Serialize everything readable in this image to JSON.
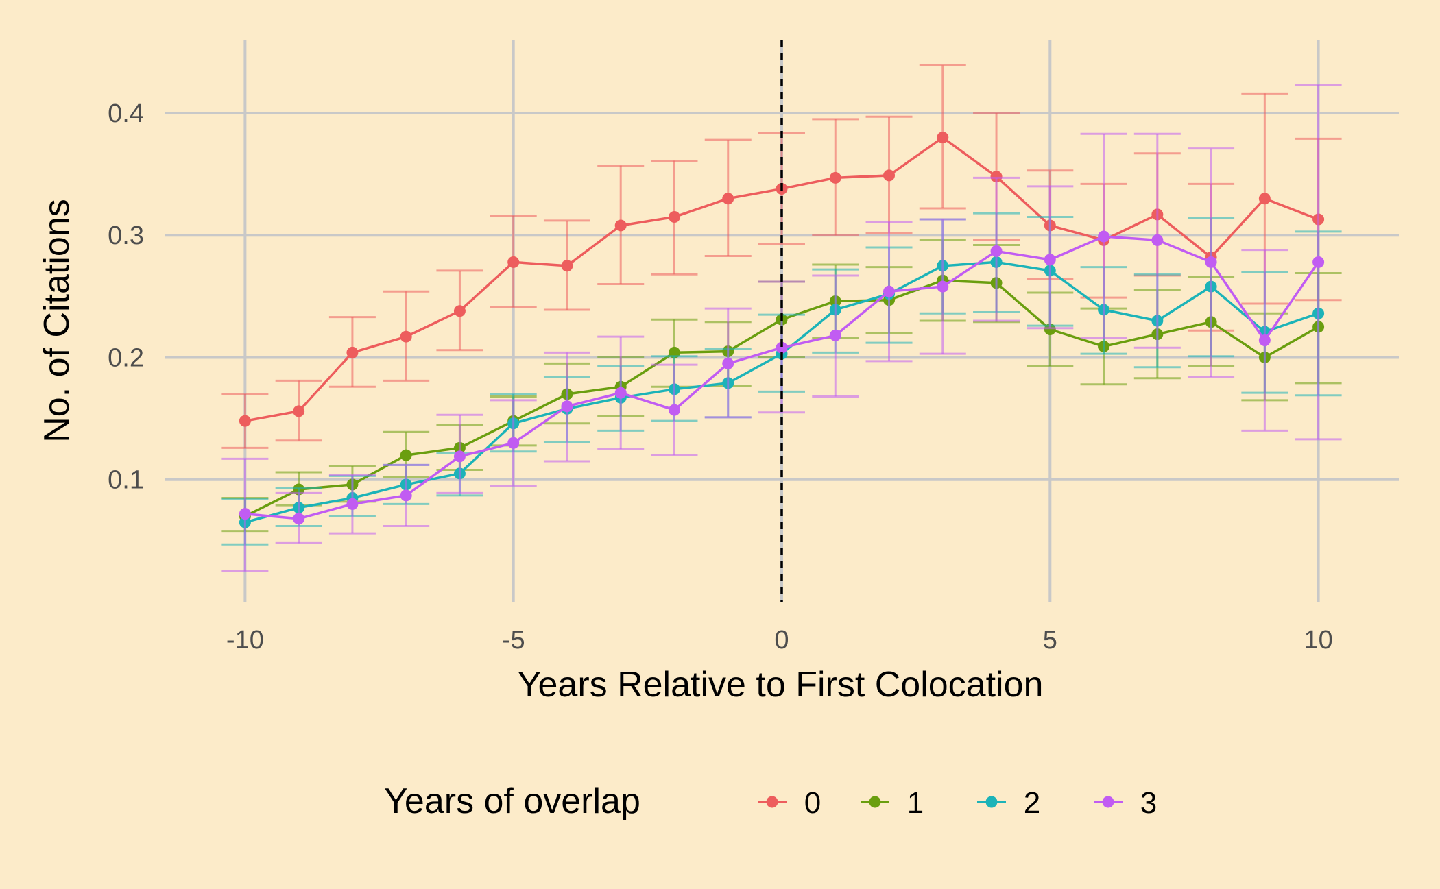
{
  "chart_data": {
    "type": "line",
    "xlabel": "Years Relative to First Colocation",
    "ylabel": "No. of Citations",
    "xlim": [
      -11.5,
      11.5
    ],
    "ylim": [
      0.0,
      0.46
    ],
    "x_ticks": [
      -10,
      -5,
      0,
      5,
      10
    ],
    "x_tick_labels": [
      "-10",
      "-5",
      "0",
      "5",
      "10"
    ],
    "y_ticks": [
      0.1,
      0.2,
      0.3,
      0.4
    ],
    "y_tick_labels": [
      "0.1",
      "0.2",
      "0.3",
      "0.4"
    ],
    "grid": true,
    "reference_line": {
      "x": 0,
      "style": "dashed",
      "color": "#000000"
    },
    "legend": {
      "title": "Years of overlap",
      "position": "bottom"
    },
    "x": [
      -10,
      -9,
      -8,
      -7,
      -6,
      -5,
      -4,
      -3,
      -2,
      -1,
      0,
      1,
      2,
      3,
      4,
      5,
      6,
      7,
      8,
      9,
      10
    ],
    "series": [
      {
        "name": "0",
        "color": "#ed5d5d",
        "values": [
          0.148,
          0.156,
          0.204,
          0.217,
          0.238,
          0.278,
          0.275,
          0.308,
          0.315,
          0.33,
          0.338,
          0.347,
          0.349,
          0.38,
          0.348,
          0.308,
          0.296,
          0.317,
          0.282,
          0.33,
          0.313
        ],
        "lower": [
          0.126,
          0.132,
          0.176,
          0.181,
          0.206,
          0.241,
          0.239,
          0.26,
          0.268,
          0.283,
          0.293,
          0.3,
          0.302,
          0.322,
          0.296,
          0.264,
          0.249,
          0.267,
          0.222,
          0.244,
          0.247
        ],
        "upper": [
          0.17,
          0.181,
          0.233,
          0.254,
          0.271,
          0.316,
          0.312,
          0.357,
          0.361,
          0.378,
          0.384,
          0.395,
          0.397,
          0.439,
          0.4,
          0.353,
          0.342,
          0.367,
          0.342,
          0.416,
          0.379
        ]
      },
      {
        "name": "1",
        "color": "#6a9e0f",
        "values": [
          0.07,
          0.092,
          0.096,
          0.12,
          0.126,
          0.148,
          0.17,
          0.176,
          0.204,
          0.205,
          0.231,
          0.246,
          0.247,
          0.263,
          0.261,
          0.223,
          0.209,
          0.219,
          0.229,
          0.2,
          0.225
        ],
        "lower": [
          0.058,
          0.079,
          0.082,
          0.102,
          0.108,
          0.128,
          0.146,
          0.152,
          0.176,
          0.177,
          0.2,
          0.216,
          0.22,
          0.23,
          0.229,
          0.193,
          0.178,
          0.183,
          0.193,
          0.165,
          0.179
        ],
        "upper": [
          0.085,
          0.106,
          0.111,
          0.139,
          0.145,
          0.168,
          0.195,
          0.2,
          0.231,
          0.229,
          0.262,
          0.276,
          0.274,
          0.296,
          0.292,
          0.253,
          0.24,
          0.255,
          0.266,
          0.236,
          0.269
        ]
      },
      {
        "name": "2",
        "color": "#1cb3b8",
        "values": [
          0.065,
          0.077,
          0.085,
          0.096,
          0.105,
          0.146,
          0.158,
          0.167,
          0.174,
          0.179,
          0.203,
          0.239,
          0.252,
          0.275,
          0.278,
          0.271,
          0.239,
          0.23,
          0.258,
          0.221,
          0.236
        ],
        "lower": [
          0.047,
          0.062,
          0.07,
          0.08,
          0.087,
          0.123,
          0.131,
          0.14,
          0.148,
          0.151,
          0.172,
          0.204,
          0.212,
          0.236,
          0.237,
          0.226,
          0.203,
          0.192,
          0.201,
          0.171,
          0.169
        ],
        "upper": [
          0.084,
          0.093,
          0.103,
          0.112,
          0.122,
          0.17,
          0.184,
          0.193,
          0.201,
          0.207,
          0.235,
          0.272,
          0.29,
          0.313,
          0.318,
          0.315,
          0.274,
          0.268,
          0.314,
          0.27,
          0.303
        ]
      },
      {
        "name": "3",
        "color": "#c15cf2",
        "values": [
          0.072,
          0.068,
          0.08,
          0.087,
          0.119,
          0.13,
          0.16,
          0.171,
          0.157,
          0.195,
          0.208,
          0.218,
          0.254,
          0.258,
          0.287,
          0.28,
          0.299,
          0.296,
          0.278,
          0.214,
          0.278
        ],
        "lower": [
          0.025,
          0.048,
          0.056,
          0.062,
          0.089,
          0.095,
          0.115,
          0.125,
          0.12,
          0.151,
          0.155,
          0.168,
          0.197,
          0.203,
          0.23,
          0.224,
          0.216,
          0.208,
          0.184,
          0.14,
          0.133
        ],
        "upper": [
          0.117,
          0.089,
          0.104,
          0.112,
          0.153,
          0.165,
          0.204,
          0.217,
          0.194,
          0.24,
          0.262,
          0.267,
          0.311,
          0.313,
          0.347,
          0.34,
          0.383,
          0.383,
          0.371,
          0.288,
          0.423
        ]
      }
    ]
  }
}
